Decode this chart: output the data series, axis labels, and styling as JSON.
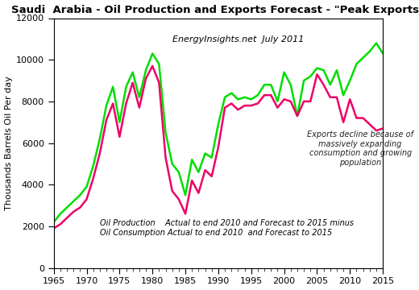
{
  "title": "Saudi  Arabia - Oil Production and Exports Forecast - \"Peak Exports\"",
  "watermark": "EnergyInsights.net  July 2011",
  "ylabel": "Thousands Barrels Oil Per day",
  "annotation_exports": "Exports decline because of\nmassively expanding\nconsumption and growing\npopulation",
  "annotation_legend": "Oil Production    Actual to end 2010 and Forecast to 2015 minus\nOil Consumption Actual to end 2010  and Forecast to 2015",
  "xlim": [
    1965,
    2015
  ],
  "ylim": [
    0,
    12000
  ],
  "yticks": [
    0,
    2000,
    4000,
    6000,
    8000,
    10000,
    12000
  ],
  "xticks": [
    1965,
    1970,
    1975,
    1980,
    1985,
    1990,
    1995,
    2000,
    2005,
    2010,
    2015
  ],
  "production_color": "#00dd00",
  "exports_color": "#ee0066",
  "production_x": [
    1965,
    1966,
    1967,
    1968,
    1969,
    1970,
    1971,
    1972,
    1973,
    1974,
    1975,
    1976,
    1977,
    1978,
    1979,
    1980,
    1981,
    1982,
    1983,
    1984,
    1985,
    1986,
    1987,
    1988,
    1989,
    1990,
    1991,
    1992,
    1993,
    1994,
    1995,
    1996,
    1997,
    1998,
    1999,
    2000,
    2001,
    2002,
    2003,
    2004,
    2005,
    2006,
    2007,
    2008,
    2009,
    2010,
    2011,
    2012,
    2013,
    2014,
    2015
  ],
  "production_y": [
    2200,
    2600,
    2900,
    3200,
    3500,
    3900,
    4900,
    6200,
    7800,
    8700,
    7000,
    8700,
    9400,
    8200,
    9500,
    10300,
    9800,
    6500,
    5000,
    4600,
    3500,
    5200,
    4600,
    5500,
    5300,
    6900,
    8200,
    8400,
    8100,
    8200,
    8100,
    8300,
    8800,
    8800,
    8000,
    9400,
    8800,
    7300,
    9000,
    9200,
    9600,
    9500,
    8800,
    9500,
    8300,
    9000,
    9800,
    10100,
    10400,
    10800,
    10300
  ],
  "exports_x": [
    1965,
    1966,
    1967,
    1968,
    1969,
    1970,
    1971,
    1972,
    1973,
    1974,
    1975,
    1976,
    1977,
    1978,
    1979,
    1980,
    1981,
    1982,
    1983,
    1984,
    1985,
    1986,
    1987,
    1988,
    1989,
    1990,
    1991,
    1992,
    1993,
    1994,
    1995,
    1996,
    1997,
    1998,
    1999,
    2000,
    2001,
    2002,
    2003,
    2004,
    2005,
    2006,
    2007,
    2008,
    2009,
    2010,
    2011,
    2012,
    2013,
    2014,
    2015
  ],
  "exports_y": [
    1900,
    2100,
    2400,
    2700,
    2900,
    3300,
    4300,
    5500,
    7100,
    7900,
    6300,
    7900,
    8900,
    7700,
    9100,
    9700,
    8900,
    5300,
    3700,
    3300,
    2600,
    4200,
    3600,
    4700,
    4400,
    5800,
    7700,
    7900,
    7600,
    7800,
    7800,
    7900,
    8300,
    8300,
    7700,
    8100,
    8000,
    7300,
    8000,
    8000,
    9300,
    8800,
    8200,
    8200,
    7000,
    8100,
    7200,
    7200,
    6900,
    6600,
    6700
  ]
}
